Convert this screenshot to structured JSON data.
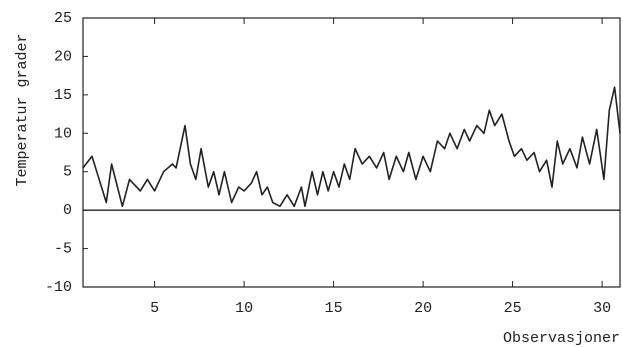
{
  "chart_data": {
    "type": "line",
    "y_label": "Temperatur grader",
    "x_label": "Observasjoner",
    "x": [
      1,
      1.5,
      2.3,
      2.6,
      3.2,
      3.6,
      4.2,
      4.6,
      5,
      5.5,
      6,
      6.2,
      6.7,
      7.0,
      7.3,
      7.6,
      8,
      8.3,
      8.6,
      8.9,
      9.3,
      9.7,
      10,
      10.4,
      10.7,
      11,
      11.3,
      11.6,
      12,
      12.4,
      12.8,
      13.2,
      13.4,
      13.8,
      14.1,
      14.4,
      14.7,
      15,
      15.3,
      15.6,
      15.9,
      16.2,
      16.6,
      17,
      17.4,
      17.8,
      18.1,
      18.5,
      18.9,
      19.2,
      19.6,
      20,
      20.4,
      20.8,
      21.2,
      21.5,
      21.9,
      22.3,
      22.6,
      23,
      23.4,
      23.7,
      24,
      24.4,
      24.8,
      25.1,
      25.5,
      25.8,
      26.2,
      26.5,
      26.9,
      27.2,
      27.5,
      27.8,
      28.2,
      28.6,
      28.9,
      29.3,
      29.7,
      30.1,
      30.4,
      30.7,
      31
    ],
    "series": [
      {
        "color": "#222222",
        "values": [
          5.5,
          7,
          1,
          6,
          0.5,
          4,
          2.5,
          4,
          2.5,
          5,
          6,
          5.5,
          11,
          6,
          4,
          8,
          3,
          5,
          2,
          5,
          1,
          3,
          2.5,
          3.5,
          5,
          2,
          3,
          1,
          0.5,
          2,
          0.5,
          3,
          0.5,
          5,
          2,
          5,
          2.5,
          5,
          3,
          6,
          4,
          8,
          6,
          7,
          5.5,
          7.5,
          4,
          7,
          5,
          7.5,
          4,
          7,
          5,
          9,
          8,
          10,
          8,
          10.5,
          9,
          11,
          10,
          13,
          11,
          12.5,
          9,
          7,
          8,
          6.5,
          7.5,
          5,
          6.5,
          3,
          9,
          6,
          8,
          5.5,
          9.5,
          6,
          10.5,
          4,
          13,
          16,
          10
        ]
      }
    ],
    "xlim": [
      1,
      31
    ],
    "ylim": [
      -10,
      25
    ],
    "xticks": [
      5,
      10,
      15,
      20,
      25,
      30
    ],
    "yticks": [
      -10,
      -5,
      0,
      5,
      10,
      15,
      20,
      25
    ],
    "reference_line": 0
  }
}
